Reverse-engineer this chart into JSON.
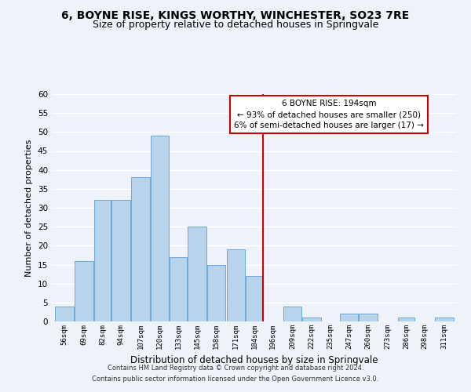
{
  "title": "6, BOYNE RISE, KINGS WORTHY, WINCHESTER, SO23 7RE",
  "subtitle": "Size of property relative to detached houses in Springvale",
  "xlabel": "Distribution of detached houses by size in Springvale",
  "ylabel": "Number of detached properties",
  "bin_labels": [
    "56sqm",
    "69sqm",
    "82sqm",
    "94sqm",
    "107sqm",
    "120sqm",
    "133sqm",
    "145sqm",
    "158sqm",
    "171sqm",
    "184sqm",
    "196sqm",
    "209sqm",
    "222sqm",
    "235sqm",
    "247sqm",
    "260sqm",
    "273sqm",
    "286sqm",
    "298sqm",
    "311sqm"
  ],
  "bar_values": [
    4,
    16,
    32,
    32,
    38,
    49,
    17,
    25,
    15,
    19,
    12,
    0,
    4,
    1,
    0,
    2,
    2,
    0,
    1,
    0,
    1
  ],
  "bar_left_edges": [
    56,
    69,
    82,
    94,
    107,
    120,
    133,
    145,
    158,
    171,
    184,
    196,
    209,
    222,
    235,
    247,
    260,
    273,
    286,
    298,
    311
  ],
  "bar_widths": [
    13,
    13,
    12,
    13,
    13,
    13,
    12,
    13,
    13,
    13,
    12,
    13,
    13,
    13,
    12,
    13,
    13,
    13,
    12,
    13,
    13
  ],
  "bar_color": "#b8d3ec",
  "bar_edge_color": "#6aaad4",
  "vline_x": 196,
  "vline_color": "#cc0000",
  "ylim": [
    0,
    60
  ],
  "yticks": [
    0,
    5,
    10,
    15,
    20,
    25,
    30,
    35,
    40,
    45,
    50,
    55,
    60
  ],
  "annotation_title": "6 BOYNE RISE: 194sqm",
  "annotation_line1": "← 93% of detached houses are smaller (250)",
  "annotation_line2": "6% of semi-detached houses are larger (17) →",
  "footer_line1": "Contains HM Land Registry data © Crown copyright and database right 2024.",
  "footer_line2": "Contains public sector information licensed under the Open Government Licence v3.0.",
  "bg_color": "#eef2f9",
  "grid_color": "#ffffff",
  "title_fontsize": 10,
  "subtitle_fontsize": 9
}
